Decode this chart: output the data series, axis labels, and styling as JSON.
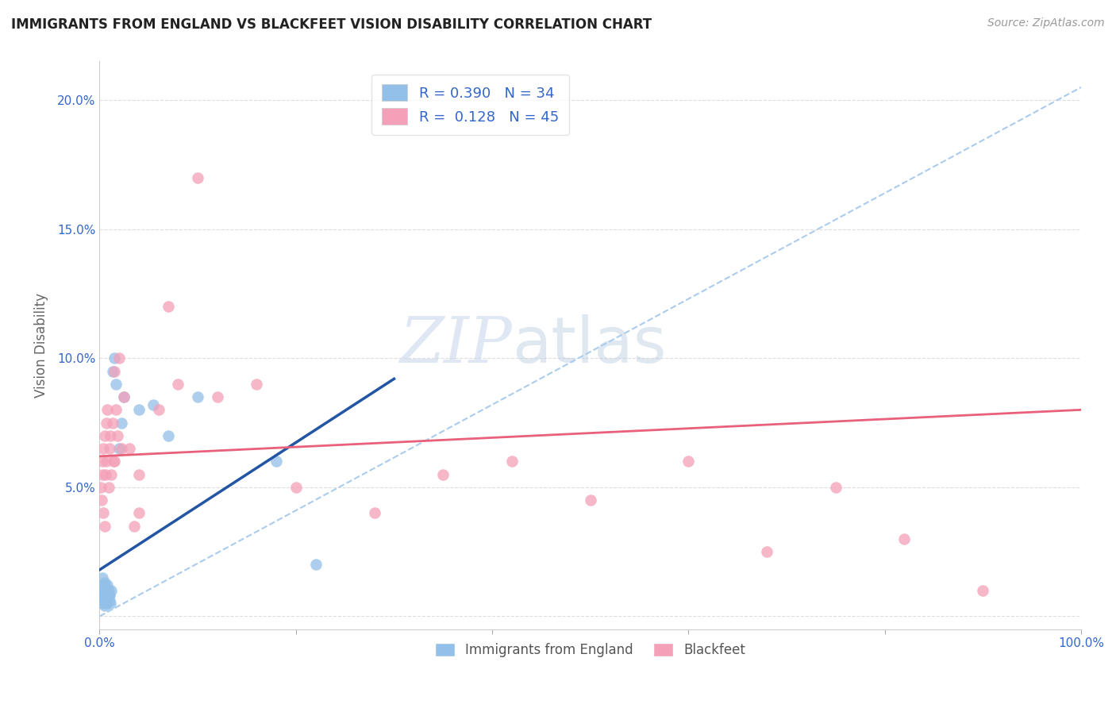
{
  "title": "IMMIGRANTS FROM ENGLAND VS BLACKFEET VISION DISABILITY CORRELATION CHART",
  "source": "Source: ZipAtlas.com",
  "ylabel": "Vision Disability",
  "xlim": [
    0.0,
    1.0
  ],
  "ylim": [
    -0.005,
    0.215
  ],
  "blue_R": 0.39,
  "blue_N": 34,
  "pink_R": 0.128,
  "pink_N": 45,
  "blue_color": "#92C0E8",
  "pink_color": "#F4A0B8",
  "blue_line_color": "#2255A4",
  "pink_line_color": "#E8607A",
  "dash_color": "#AACCEE",
  "watermark_zip": "ZIP",
  "watermark_atlas": "atlas",
  "grid_color": "#DDDDDD",
  "background_color": "#FFFFFF",
  "blue_scatter_x": [
    0.001,
    0.002,
    0.002,
    0.003,
    0.003,
    0.004,
    0.004,
    0.005,
    0.005,
    0.005,
    0.006,
    0.006,
    0.007,
    0.007,
    0.008,
    0.008,
    0.009,
    0.009,
    0.01,
    0.01,
    0.011,
    0.012,
    0.013,
    0.015,
    0.017,
    0.02,
    0.022,
    0.025,
    0.04,
    0.055,
    0.07,
    0.1,
    0.18,
    0.22
  ],
  "blue_scatter_y": [
    0.01,
    0.008,
    0.012,
    0.005,
    0.015,
    0.007,
    0.01,
    0.004,
    0.008,
    0.013,
    0.006,
    0.011,
    0.005,
    0.009,
    0.007,
    0.012,
    0.008,
    0.01,
    0.006,
    0.008,
    0.005,
    0.01,
    0.095,
    0.1,
    0.09,
    0.065,
    0.075,
    0.085,
    0.08,
    0.082,
    0.07,
    0.085,
    0.06,
    0.02
  ],
  "pink_scatter_x": [
    0.001,
    0.002,
    0.003,
    0.003,
    0.004,
    0.004,
    0.005,
    0.005,
    0.006,
    0.007,
    0.007,
    0.008,
    0.009,
    0.01,
    0.011,
    0.012,
    0.013,
    0.015,
    0.017,
    0.02,
    0.022,
    0.025,
    0.03,
    0.04,
    0.06,
    0.07,
    0.08,
    0.1,
    0.12,
    0.16,
    0.2,
    0.28,
    0.35,
    0.42,
    0.5,
    0.6,
    0.68,
    0.75,
    0.82,
    0.9,
    0.014,
    0.018,
    0.04,
    0.035,
    0.015
  ],
  "pink_scatter_y": [
    0.05,
    0.045,
    0.055,
    0.06,
    0.04,
    0.065,
    0.035,
    0.07,
    0.055,
    0.06,
    0.075,
    0.08,
    0.05,
    0.065,
    0.07,
    0.055,
    0.075,
    0.06,
    0.08,
    0.1,
    0.065,
    0.085,
    0.065,
    0.055,
    0.08,
    0.12,
    0.09,
    0.17,
    0.085,
    0.09,
    0.05,
    0.04,
    0.055,
    0.06,
    0.045,
    0.06,
    0.025,
    0.05,
    0.03,
    0.01,
    0.06,
    0.07,
    0.04,
    0.035,
    0.095
  ],
  "blue_line_x0": 0.0,
  "blue_line_x1": 0.3,
  "blue_line_y0": 0.018,
  "blue_line_y1": 0.092,
  "dash_line_x0": 0.0,
  "dash_line_x1": 1.0,
  "dash_line_y0": 0.0,
  "dash_line_y1": 0.205,
  "pink_line_x0": 0.0,
  "pink_line_x1": 1.0,
  "pink_line_y0": 0.062,
  "pink_line_y1": 0.08
}
